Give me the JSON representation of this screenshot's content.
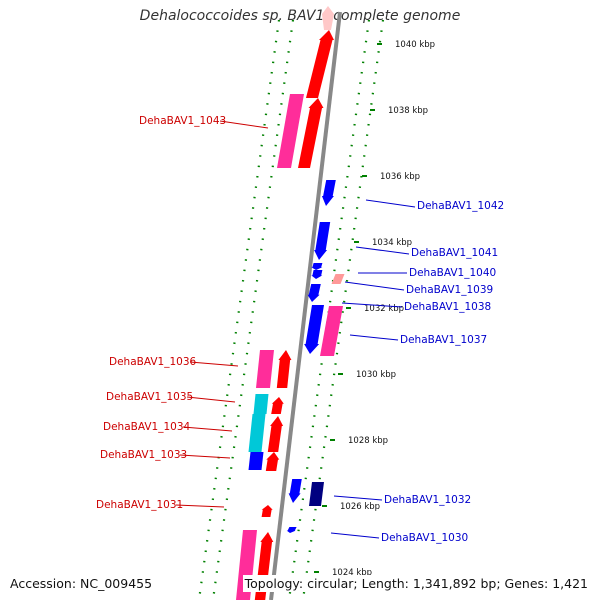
{
  "title": "Dehalococcoides sp. BAV1, complete genome",
  "accession": "Accession: NC_009455",
  "summary": "Topology: circular; Length: 1,341,892 bp; Genes: 1,421",
  "colors": {
    "forward_cds": "#ff0000",
    "reverse_cds": "#0000ff",
    "forward_feature": "#ff2d9a",
    "reverse_feature": "#ff2d9a",
    "cyan_feature": "#00c8d8",
    "navy_feature": "#000080",
    "tick": "#008000",
    "backbone": "#888888",
    "forward_label": "#cc0000",
    "reverse_label": "#0000cc"
  },
  "ticks": [
    "1040 kbp",
    "1038 kbp",
    "1036 kbp",
    "1034 kbp",
    "1032 kbp",
    "1030 kbp",
    "1028 kbp",
    "1026 kbp",
    "1024 kbp"
  ],
  "left_labels": [
    "DehaBAV1_1043",
    "DehaBAV1_1036",
    "DehaBAV1_1035",
    "DehaBAV1_1034",
    "DehaBAV1_1033",
    "DehaBAV1_1031"
  ],
  "right_labels": [
    "DehaBAV1_1042",
    "DehaBAV1_1041",
    "DehaBAV1_1040",
    "DehaBAV1_1039",
    "DehaBAV1_1038",
    "DehaBAV1_1037",
    "DehaBAV1_1032",
    "DehaBAV1_1030"
  ]
}
